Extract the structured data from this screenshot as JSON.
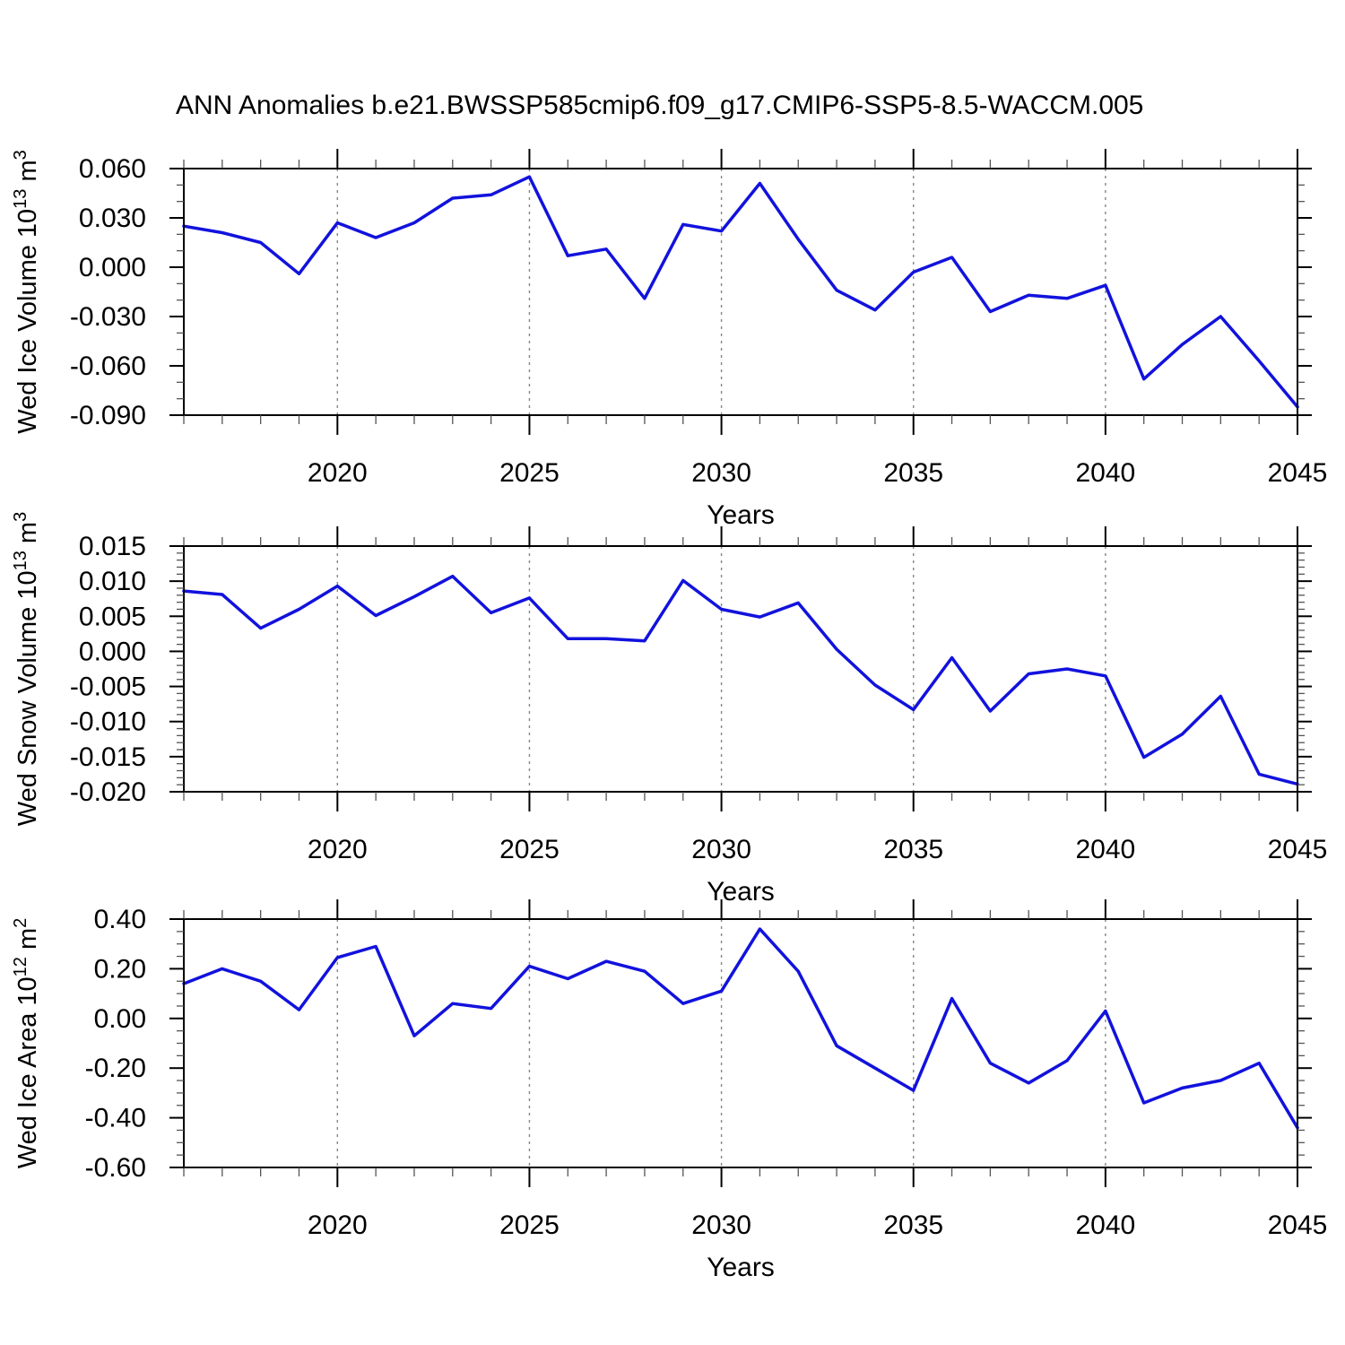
{
  "title": "ANN Anomalies b.e21.BWSSP585cmip6.f09_g17.CMIP6-SSP5-8.5-WACCM.005",
  "colors": {
    "line": "#1212dd",
    "frame": "#000000",
    "minor_tick": "#555555",
    "gridline": "#858585",
    "text": "#000000",
    "background": "#ffffff"
  },
  "x_axis": {
    "label": "Years",
    "start_year": 2016,
    "end_year": 2045,
    "major_ticks": [
      2020,
      2025,
      2030,
      2035,
      2040,
      2045
    ],
    "major_tick_labels": [
      "2020",
      "2025",
      "2030",
      "2035",
      "2040",
      "2045"
    ],
    "gridline_years": [
      2020,
      2025,
      2030,
      2035,
      2040
    ],
    "minor_tick_interval_years": 1
  },
  "chart_data": [
    {
      "type": "line",
      "title": "",
      "ylabel": "Wed Ice Volume 10^13 m^3",
      "xlabel": "Years",
      "ylim": [
        -0.09,
        0.06
      ],
      "ytick_labels": [
        "0.060",
        "0.030",
        "0.000",
        "-0.030",
        "-0.060",
        "-0.090"
      ],
      "yminor_interval": 0.01,
      "grid": "vertical-dashed",
      "legend": "none",
      "x": [
        2016,
        2017,
        2018,
        2019,
        2020,
        2021,
        2022,
        2023,
        2024,
        2025,
        2026,
        2027,
        2028,
        2029,
        2030,
        2031,
        2032,
        2033,
        2034,
        2035,
        2036,
        2037,
        2038,
        2039,
        2040,
        2041,
        2042,
        2043,
        2044,
        2045
      ],
      "values": [
        0.025,
        0.021,
        0.015,
        -0.004,
        0.027,
        0.018,
        0.027,
        0.042,
        0.044,
        0.055,
        0.007,
        0.011,
        -0.019,
        0.026,
        0.022,
        0.051,
        0.017,
        -0.014,
        -0.026,
        -0.003,
        0.006,
        -0.027,
        -0.017,
        -0.019,
        -0.011,
        -0.068,
        -0.047,
        -0.03,
        -0.057,
        -0.085
      ]
    },
    {
      "type": "line",
      "title": "",
      "ylabel": "Wed Snow Volume 10^13 m^3",
      "xlabel": "Years",
      "ylim": [
        -0.02,
        0.015
      ],
      "ytick_labels": [
        "0.015",
        "0.010",
        "0.005",
        "0.000",
        "-0.005",
        "-0.010",
        "-0.015",
        "-0.020"
      ],
      "yminor_interval": 0.001,
      "grid": "vertical-dashed",
      "legend": "none",
      "x": [
        2016,
        2017,
        2018,
        2019,
        2020,
        2021,
        2022,
        2023,
        2024,
        2025,
        2026,
        2027,
        2028,
        2029,
        2030,
        2031,
        2032,
        2033,
        2034,
        2035,
        2036,
        2037,
        2038,
        2039,
        2040,
        2041,
        2042,
        2043,
        2044,
        2045
      ],
      "values": [
        0.0086,
        0.0081,
        0.0033,
        0.006,
        0.0093,
        0.0051,
        0.0078,
        0.0107,
        0.0055,
        0.0076,
        0.0018,
        0.0018,
        0.0015,
        0.0101,
        0.006,
        0.0049,
        0.0069,
        0.0003,
        -0.0048,
        -0.0083,
        -0.0009,
        -0.0085,
        -0.0032,
        -0.0025,
        -0.0035,
        -0.0151,
        -0.0118,
        -0.0064,
        -0.0175,
        -0.0189
      ]
    },
    {
      "type": "line",
      "title": "",
      "ylabel": "Wed Ice Area 10^12 m^2",
      "xlabel": "Years",
      "ylim": [
        -0.6,
        0.4
      ],
      "ytick_labels": [
        "0.40",
        "0.20",
        "0.00",
        "-0.20",
        "-0.40",
        "-0.60"
      ],
      "yminor_interval": 0.05,
      "grid": "vertical-dashed",
      "legend": "none",
      "x": [
        2016,
        2017,
        2018,
        2019,
        2020,
        2021,
        2022,
        2023,
        2024,
        2025,
        2026,
        2027,
        2028,
        2029,
        2030,
        2031,
        2032,
        2033,
        2034,
        2035,
        2036,
        2037,
        2038,
        2039,
        2040,
        2041,
        2042,
        2043,
        2044,
        2045
      ],
      "values": [
        0.14,
        0.2,
        0.15,
        0.035,
        0.245,
        0.29,
        -0.07,
        0.06,
        0.04,
        0.21,
        0.16,
        0.23,
        0.19,
        0.06,
        0.11,
        0.36,
        0.19,
        -0.11,
        -0.2,
        -0.29,
        0.08,
        -0.18,
        -0.26,
        -0.17,
        0.03,
        -0.34,
        -0.28,
        -0.25,
        -0.18,
        -0.44
      ]
    }
  ]
}
